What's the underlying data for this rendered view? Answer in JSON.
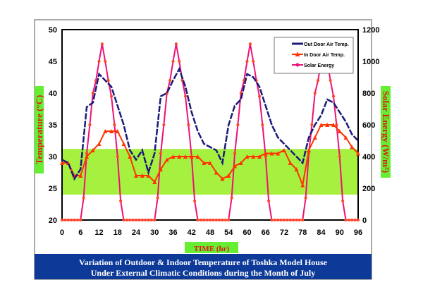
{
  "chart_data": {
    "type": "line",
    "title": "Variation of Outdoor & Indoor Temperature of Toshka Model House",
    "subtitle": "Under External Climatic Conditions during the Month of July",
    "xlabel": "TIME (hr)",
    "ylabel": "Temperature (°C)",
    "y2label": "Solar Energy (W/m²)",
    "xlim": [
      0,
      96
    ],
    "ylim": [
      20,
      50
    ],
    "y2lim": [
      0,
      1200
    ],
    "xticks": [
      "0",
      "6",
      "12",
      "18",
      "24",
      "30",
      "36",
      "42",
      "48",
      "54",
      "60",
      "66",
      "72",
      "78",
      "84",
      "90",
      "96"
    ],
    "yticks": [
      "20",
      "25",
      "30",
      "35",
      "40",
      "45",
      "50"
    ],
    "y2ticks": [
      "0",
      "200",
      "400",
      "600",
      "800",
      "1000",
      "1200"
    ],
    "comfort_band": [
      24,
      31.2
    ],
    "legend_position": "top-right",
    "colors": {
      "outdoor": "#1a1a7a",
      "indoor": "#ff3300",
      "solar": "#ee1177",
      "band": "#a6f040",
      "label_bg": "#66ee33",
      "banner": "#0d3a99"
    },
    "series": [
      {
        "name": "Out Door Air Temp.",
        "axis": "left",
        "x": [
          0,
          2,
          4,
          6,
          8,
          10,
          12,
          14,
          16,
          18,
          20,
          22,
          24,
          26,
          28,
          30,
          32,
          34,
          36,
          38,
          40,
          42,
          44,
          46,
          48,
          50,
          52,
          54,
          56,
          58,
          60,
          62,
          64,
          66,
          68,
          70,
          72,
          74,
          76,
          78,
          80,
          82,
          84,
          86,
          88,
          90,
          92,
          94,
          96
        ],
        "values": [
          29.5,
          29,
          26.5,
          28,
          37.8,
          38.5,
          43,
          42,
          41,
          38,
          35,
          31,
          29.5,
          31,
          27.5,
          30.5,
          39.5,
          40,
          42,
          43.8,
          41,
          37,
          34,
          32,
          31.5,
          31,
          29,
          35,
          38,
          39,
          43,
          42.5,
          41,
          38,
          35,
          33,
          32,
          31,
          30,
          29,
          33,
          35,
          36.5,
          39,
          38.5,
          37,
          35.5,
          33.5,
          32.5
        ]
      },
      {
        "name": "In Door Air Temp.",
        "axis": "left",
        "x": [
          0,
          2,
          4,
          6,
          8,
          10,
          12,
          14,
          16,
          18,
          20,
          22,
          24,
          26,
          28,
          30,
          32,
          34,
          36,
          38,
          40,
          42,
          44,
          46,
          48,
          50,
          52,
          54,
          56,
          58,
          60,
          62,
          64,
          66,
          68,
          70,
          72,
          74,
          76,
          78,
          80,
          82,
          84,
          86,
          88,
          90,
          92,
          94,
          96
        ],
        "values": [
          29,
          29,
          27,
          27,
          30,
          31,
          32,
          34,
          34,
          34,
          32,
          30,
          27,
          27,
          27,
          26,
          28,
          29.5,
          30,
          30,
          30,
          30,
          30,
          29,
          29,
          27.5,
          26.5,
          27,
          28.5,
          29,
          30,
          30,
          30,
          30.5,
          30.5,
          30.5,
          31,
          29,
          28,
          25.5,
          31,
          33,
          35,
          35,
          35,
          34,
          33,
          31.5,
          30.5
        ]
      },
      {
        "name": "Solar Energy",
        "axis": "right",
        "x_start": 0,
        "x_step": 1,
        "values": [
          0,
          0,
          0,
          0,
          0,
          0,
          0,
          140,
          420,
          600,
          800,
          880,
          1000,
          1110,
          1000,
          880,
          780,
          600,
          400,
          120,
          0,
          0,
          0,
          0,
          0,
          0,
          0,
          0,
          0,
          0,
          0,
          140,
          420,
          600,
          800,
          880,
          1000,
          1110,
          1000,
          880,
          780,
          600,
          400,
          120,
          0,
          0,
          0,
          0,
          0,
          0,
          0,
          0,
          0,
          0,
          0,
          140,
          420,
          600,
          800,
          880,
          1000,
          1110,
          1000,
          880,
          780,
          600,
          400,
          120,
          0,
          0,
          0,
          0,
          0,
          0,
          0,
          0,
          0,
          0,
          0,
          140,
          420,
          600,
          800,
          880,
          1000,
          1110,
          1000,
          880,
          780,
          600,
          400,
          120,
          0,
          0,
          0,
          0,
          0
        ]
      }
    ]
  }
}
